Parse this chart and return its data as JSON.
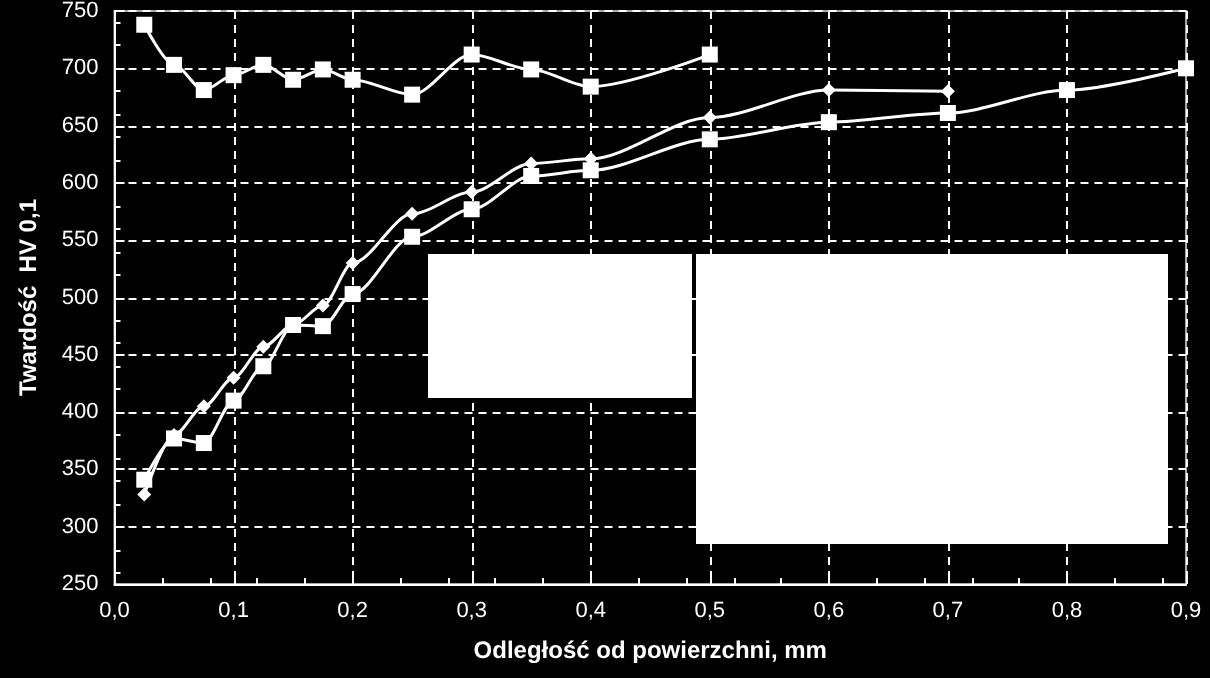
{
  "chart_data": {
    "type": "line",
    "xlabel": "Odległość od powierzchni, mm",
    "ylabel": "Twardość  HV 0,1",
    "xlim": [
      0,
      0.9
    ],
    "ylim": [
      250,
      750
    ],
    "xticks": [
      {
        "value": 0,
        "label": "0,0"
      },
      {
        "value": 0.1,
        "label": "0,1"
      },
      {
        "value": 0.2,
        "label": "0,2"
      },
      {
        "value": 0.3,
        "label": "0,3"
      },
      {
        "value": 0.4,
        "label": "0,4"
      },
      {
        "value": 0.5,
        "label": "0,5"
      },
      {
        "value": 0.6,
        "label": "0,6"
      },
      {
        "value": 0.7,
        "label": "0,7"
      },
      {
        "value": 0.8,
        "label": "0,8"
      },
      {
        "value": 0.9,
        "label": "0,9"
      }
    ],
    "yticks": [
      250,
      300,
      350,
      400,
      450,
      500,
      550,
      600,
      650,
      700,
      750
    ],
    "grid": true,
    "series": [
      {
        "color": "#ffffff",
        "marker": "square",
        "x": [
          0.025,
          0.05,
          0.075,
          0.1,
          0.125,
          0.15,
          0.175,
          0.2,
          0.25,
          0.3,
          0.35,
          0.4,
          0.5
        ],
        "values": [
          738,
          703,
          681,
          694,
          703,
          690,
          699,
          690,
          677,
          712,
          699,
          684,
          712
        ]
      },
      {
        "color": "#ffffff",
        "marker": "diamond",
        "x": [
          0.025,
          0.05,
          0.075,
          0.1,
          0.125,
          0.15,
          0.175,
          0.2,
          0.25,
          0.3,
          0.35,
          0.4,
          0.5,
          0.6,
          0.7
        ],
        "values": [
          328,
          380,
          405,
          430,
          457,
          476,
          493,
          530,
          573,
          592,
          617,
          621,
          657,
          681,
          680
        ]
      },
      {
        "color": "#ffffff",
        "marker": "square",
        "x": [
          0.025,
          0.05,
          0.075,
          0.1,
          0.125,
          0.15,
          0.175,
          0.2,
          0.25,
          0.3,
          0.35,
          0.4,
          0.5,
          0.6,
          0.7,
          0.8,
          0.9
        ],
        "values": [
          341,
          377,
          373,
          410,
          440,
          476,
          475,
          503,
          553,
          577,
          606,
          611,
          638,
          653,
          661,
          681,
          700
        ]
      }
    ]
  }
}
